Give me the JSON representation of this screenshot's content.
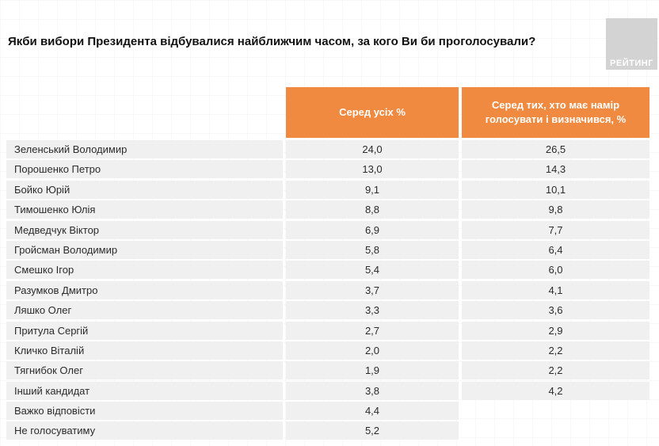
{
  "page": {
    "title": "Якби вибори Президента відбувалися найближчим часом, за кого Ви би проголосували?",
    "logo_label": "РЕЙТИНГ"
  },
  "colors": {
    "accent_orange": "#ef8a40",
    "row_background": "#f0f0f0",
    "logo_background": "#d3d3d3"
  },
  "table": {
    "columns": [
      "Серед усіх %",
      "Серед тих, хто має намір голосувати і визначився, %"
    ],
    "rows": [
      {
        "name": "Зеленський Володимир",
        "all": "24,0",
        "decided": "26,5"
      },
      {
        "name": "Порошенко Петро",
        "all": "13,0",
        "decided": "14,3"
      },
      {
        "name": "Бойко Юрій",
        "all": "9,1",
        "decided": "10,1"
      },
      {
        "name": "Тимошенко Юлія",
        "all": "8,8",
        "decided": "9,8"
      },
      {
        "name": "Медведчук Віктор",
        "all": "6,9",
        "decided": "7,7"
      },
      {
        "name": "Гройсман Володимир",
        "all": "5,8",
        "decided": "6,4"
      },
      {
        "name": "Смешко Ігор",
        "all": "5,4",
        "decided": "6,0"
      },
      {
        "name": "Разумков Дмитро",
        "all": "3,7",
        "decided": "4,1"
      },
      {
        "name": "Ляшко Олег",
        "all": "3,3",
        "decided": "3,6"
      },
      {
        "name": "Притула Сергій",
        "all": "2,7",
        "decided": "2,9"
      },
      {
        "name": "Кличко Віталій",
        "all": "2,0",
        "decided": "2,2"
      },
      {
        "name": "Тягнибок Олег",
        "all": "1,9",
        "decided": "2,2"
      },
      {
        "name": "Інший кандидат",
        "all": "3,8",
        "decided": "4,2"
      },
      {
        "name": "Важко відповісти",
        "all": "4,4",
        "decided": ""
      },
      {
        "name": "Не голосуватиму",
        "all": "5,2",
        "decided": ""
      }
    ]
  },
  "chart_data": {
    "type": "table",
    "title": "Якби вибори Президента відбувалися найближчим часом, за кого Ви би проголосували?",
    "columns": [
      "Серед усіх %",
      "Серед тих, хто має намір голосувати і визначився, %"
    ],
    "categories": [
      "Зеленський Володимир",
      "Порошенко Петро",
      "Бойко Юрій",
      "Тимошенко Юлія",
      "Медведчук Віктор",
      "Гройсман Володимир",
      "Смешко Ігор",
      "Разумков Дмитро",
      "Ляшко Олег",
      "Притула Сергій",
      "Кличко Віталій",
      "Тягнибок Олег",
      "Інший кандидат",
      "Важко відповісти",
      "Не голосуватиму"
    ],
    "series": [
      {
        "name": "Серед усіх %",
        "values": [
          24.0,
          13.0,
          9.1,
          8.8,
          6.9,
          5.8,
          5.4,
          3.7,
          3.3,
          2.7,
          2.0,
          1.9,
          3.8,
          4.4,
          5.2
        ]
      },
      {
        "name": "Серед тих, хто має намір голосувати і визначився, %",
        "values": [
          26.5,
          14.3,
          10.1,
          9.8,
          7.7,
          6.4,
          6.0,
          4.1,
          3.6,
          2.9,
          2.2,
          2.2,
          4.2,
          null,
          null
        ]
      }
    ],
    "legend_position": "none",
    "grid": false
  }
}
